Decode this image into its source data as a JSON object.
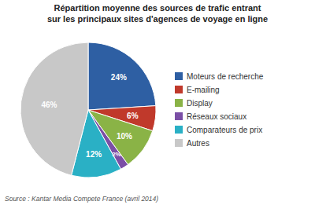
{
  "chart_data": {
    "type": "pie",
    "title": "Répartition moyenne des sources de trafic entrant\nsur les principaux sites d'agences de voyage en ligne",
    "source": "Source : Kantar Media Compete France (avril 2014)",
    "categories": [
      "Moteurs de recherche",
      "E-mailing",
      "Display",
      "Réseaux sociaux",
      "Comparateurs de prix",
      "Autres"
    ],
    "values": [
      24,
      6,
      10,
      2,
      12,
      46
    ],
    "value_labels": [
      "24%",
      "6%",
      "10%",
      "2%",
      "12%",
      "46%"
    ],
    "colors": [
      "#2e5fa3",
      "#c0392b",
      "#8ab346",
      "#7b4fa6",
      "#2ab0c5",
      "#c8c8c8"
    ],
    "data_labels": true,
    "legend": "right"
  }
}
